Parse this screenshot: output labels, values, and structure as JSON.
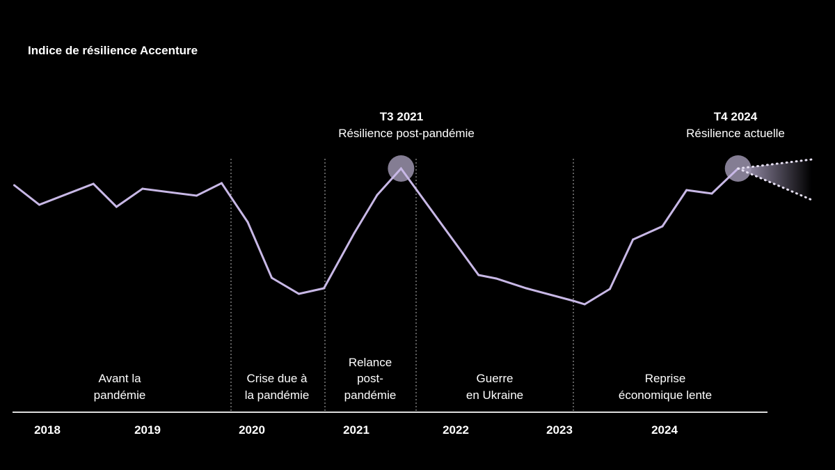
{
  "chart_data": {
    "type": "line",
    "title": "Indice de résilience Accenture",
    "xlabel": "",
    "ylabel": "",
    "grid": false,
    "legend": "none",
    "x_tick_labels": [
      "2018",
      "2019",
      "2020",
      "2021",
      "2022",
      "2023",
      "2024"
    ],
    "line_color": "#c8b8e6",
    "highlight_color": "#9b93ad",
    "series": [
      {
        "x": [
          2018.17,
          2018.42,
          2018.96,
          2019.19,
          2019.45,
          2019.97,
          2020.21,
          2020.46,
          2020.69,
          2020.95,
          2021.19,
          2021.48,
          2021.71,
          2021.95,
          2022.72,
          2022.89,
          2023.18,
          2023.63,
          2023.74,
          2023.98,
          2024.2,
          2024.48,
          2024.71,
          2024.95,
          2025.2
        ],
        "values": [
          92,
          78,
          93,
          76.5,
          89.5,
          84.5,
          93.5,
          65.5,
          25.5,
          14,
          18,
          57.5,
          85,
          104,
          27.5,
          25,
          18,
          9,
          6.5,
          17.5,
          53,
          62.5,
          88.5,
          86,
          104
        ]
      }
    ],
    "projection": {
      "x_end": 2025.9,
      "upper": 110.5,
      "lower": 81.5
    },
    "phases": [
      {
        "lines": [
          "Avant la",
          "pandémie"
        ]
      },
      {
        "lines": [
          "Crise due à",
          "la pandémie"
        ]
      },
      {
        "lines": [
          "Relance",
          "post-",
          "pandémie"
        ]
      },
      {
        "lines": [
          "Guerre",
          "en Ukraine"
        ]
      },
      {
        "lines": [
          "Reprise",
          "économique lente"
        ]
      }
    ],
    "annotations": [
      {
        "label": "T3 2021",
        "text": "Résilience post-pandémie"
      },
      {
        "label": "T4 2024",
        "text": "Résilience actuelle"
      }
    ]
  }
}
